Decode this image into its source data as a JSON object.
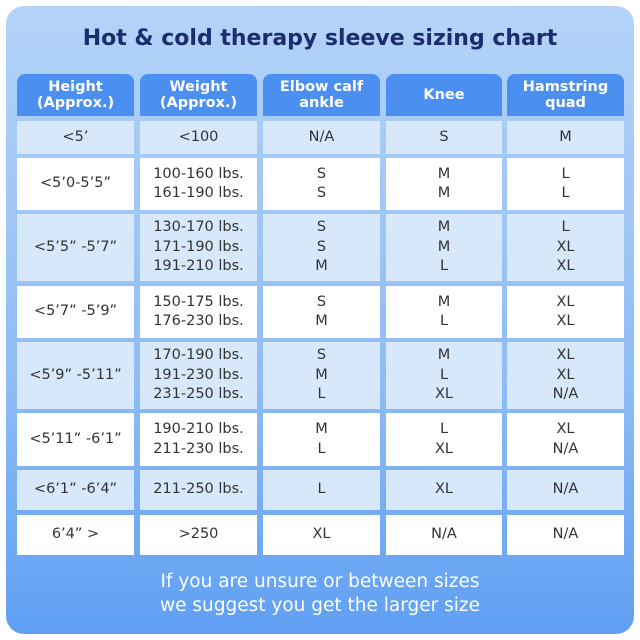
{
  "title": "Hot & cold therapy sleeve sizing chart",
  "table": {
    "header": [
      [
        "Height",
        "(Approx.)"
      ],
      [
        "Weight",
        "(Approx.)"
      ],
      [
        "Elbow calf",
        "ankle"
      ],
      [
        "Knee"
      ],
      [
        "Hamstring",
        "quad"
      ]
    ],
    "rows": [
      [
        [
          "<5’"
        ],
        [
          "<100"
        ],
        [
          "N/A"
        ],
        [
          "S"
        ],
        [
          "M"
        ]
      ],
      [
        [
          "<5’0-5’5”"
        ],
        [
          "100-160 lbs.",
          "161-190 lbs."
        ],
        [
          "S",
          "S"
        ],
        [
          "M",
          "M"
        ],
        [
          "L",
          "L"
        ]
      ],
      [
        [
          "<5’5” -5’7”"
        ],
        [
          "130-170 lbs.",
          "171-190 lbs.",
          "191-210 lbs."
        ],
        [
          "S",
          "S",
          "M"
        ],
        [
          "M",
          "M",
          "L"
        ],
        [
          "L",
          "XL",
          "XL"
        ]
      ],
      [
        [
          "<5’7” -5’9”"
        ],
        [
          "150-175 lbs.",
          "176-230 lbs."
        ],
        [
          "S",
          "M"
        ],
        [
          "M",
          "L"
        ],
        [
          "XL",
          "XL"
        ]
      ],
      [
        [
          "<5’9” -5’11”"
        ],
        [
          "170-190 lbs.",
          "191-230 lbs.",
          "231-250 lbs."
        ],
        [
          "S",
          "M",
          "L"
        ],
        [
          "M",
          "L",
          "XL"
        ],
        [
          "XL",
          "XL",
          "N/A"
        ]
      ],
      [
        [
          "<5’11” -6’1”"
        ],
        [
          "190-210 lbs.",
          "211-230 lbs."
        ],
        [
          "M",
          "L"
        ],
        [
          "L",
          "XL"
        ],
        [
          "XL",
          "N/A"
        ]
      ],
      [
        [
          "<6’1” -6’4”"
        ],
        [
          "211-250 lbs."
        ],
        [
          "L"
        ],
        [
          "XL"
        ],
        [
          "N/A"
        ]
      ],
      [
        [
          "6’4” >"
        ],
        [
          ">250"
        ],
        [
          "XL"
        ],
        [
          "N/A"
        ],
        [
          "N/A"
        ]
      ]
    ]
  },
  "footer": [
    "If you are unsure or between sizes",
    "we suggest you get the larger size"
  ]
}
